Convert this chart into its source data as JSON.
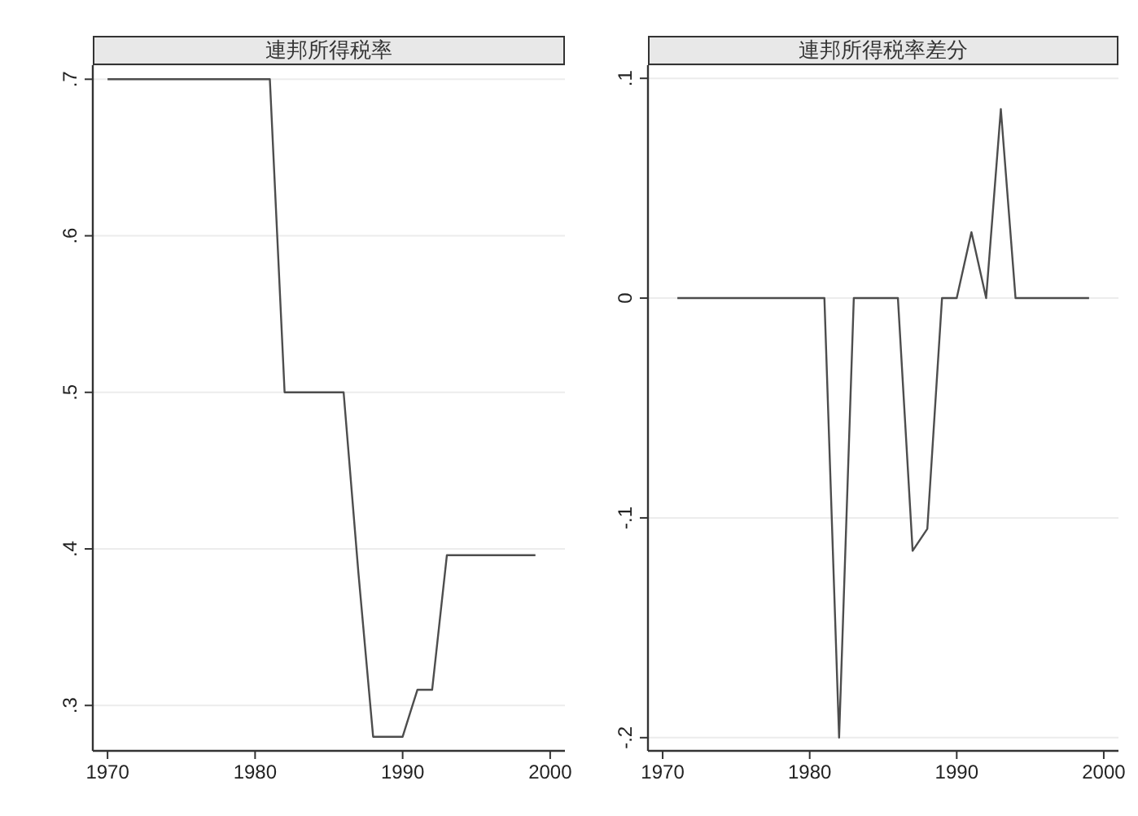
{
  "chart_data": [
    {
      "type": "line",
      "title": "連邦所得税率",
      "x": [
        1970,
        1971,
        1972,
        1973,
        1974,
        1975,
        1976,
        1977,
        1978,
        1979,
        1980,
        1981,
        1982,
        1983,
        1984,
        1985,
        1986,
        1987,
        1988,
        1989,
        1990,
        1991,
        1992,
        1993,
        1994,
        1995,
        1996,
        1997,
        1998,
        1999
      ],
      "values": [
        0.7,
        0.7,
        0.7,
        0.7,
        0.7,
        0.7,
        0.7,
        0.7,
        0.7,
        0.7,
        0.7,
        0.7,
        0.5,
        0.5,
        0.5,
        0.5,
        0.5,
        0.385,
        0.28,
        0.28,
        0.28,
        0.31,
        0.31,
        0.396,
        0.396,
        0.396,
        0.396,
        0.396,
        0.396,
        0.396
      ],
      "color": "#4d4d4d",
      "xlim": [
        1969,
        2001
      ],
      "xticks": [
        1970,
        1980,
        1990,
        2000
      ],
      "ylim": [
        0.271,
        0.709
      ],
      "yticks": [
        {
          "value": 0.3,
          "label": ".3"
        },
        {
          "value": 0.4,
          "label": ".4"
        },
        {
          "value": 0.5,
          "label": ".5"
        },
        {
          "value": 0.6,
          "label": ".6"
        },
        {
          "value": 0.7,
          "label": ".7"
        }
      ],
      "grid": "y"
    },
    {
      "type": "line",
      "title": "連邦所得税率差分",
      "x": [
        1971,
        1972,
        1973,
        1974,
        1975,
        1976,
        1977,
        1978,
        1979,
        1980,
        1981,
        1982,
        1983,
        1984,
        1985,
        1986,
        1987,
        1988,
        1989,
        1990,
        1991,
        1992,
        1993,
        1994,
        1995,
        1996,
        1997,
        1998,
        1999
      ],
      "values": [
        0,
        0,
        0,
        0,
        0,
        0,
        0,
        0,
        0,
        0,
        0,
        -0.2,
        0,
        0,
        0,
        0,
        -0.115,
        -0.105,
        0,
        0,
        0.03,
        0,
        0.086,
        0,
        0,
        0,
        0,
        0,
        0
      ],
      "color": "#4d4d4d",
      "xlim": [
        1969,
        2001
      ],
      "xticks": [
        1970,
        1980,
        1990,
        2000
      ],
      "ylim": [
        -0.206,
        0.106
      ],
      "yticks": [
        {
          "value": -0.2,
          "label": "-.2"
        },
        {
          "value": -0.1,
          "label": "-.1"
        },
        0,
        {
          "value": 0.1,
          "label": ".1"
        }
      ],
      "grid": "y"
    }
  ]
}
